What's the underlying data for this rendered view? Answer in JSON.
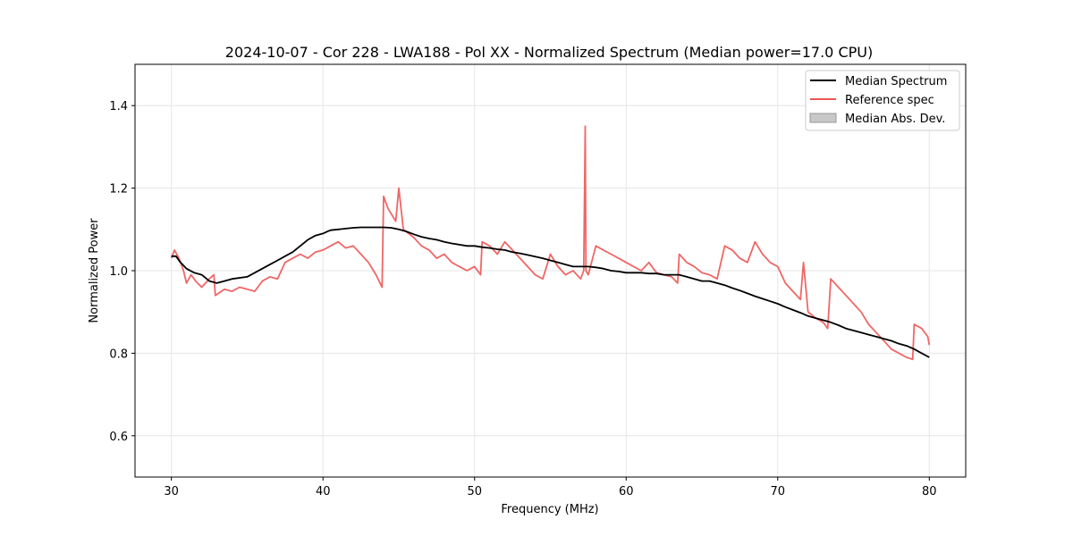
{
  "chart_data": {
    "type": "line",
    "title": "2024-10-07 - Cor 228 - LWA188 - Pol XX - Normalized Spectrum (Median power=17.0 CPU)",
    "xlabel": "Frequency (MHz)",
    "ylabel": "Normalized Power",
    "xlim": [
      27.6,
      82.4
    ],
    "ylim": [
      0.5,
      1.5
    ],
    "xticks": [
      30,
      40,
      50,
      60,
      70,
      80
    ],
    "yticks": [
      0.6,
      0.8,
      1.0,
      1.2,
      1.4
    ],
    "xtick_labels": [
      "30",
      "40",
      "50",
      "60",
      "70",
      "80"
    ],
    "ytick_labels": [
      "0.6",
      "0.8",
      "1.0",
      "1.2",
      "1.4"
    ],
    "grid": true,
    "legend_position": "top-right",
    "legend": [
      "Median Spectrum",
      "Reference spec",
      "Median Abs. Dev."
    ],
    "series": [
      {
        "name": "Median Spectrum",
        "color": "#000000",
        "x": [
          30.0,
          30.3,
          30.6,
          31.0,
          31.5,
          32.0,
          32.5,
          33.0,
          33.5,
          34.0,
          35.0,
          35.5,
          36.0,
          36.5,
          37.0,
          37.5,
          38.0,
          38.5,
          39.0,
          39.5,
          40.0,
          40.3,
          40.5,
          41.0,
          41.5,
          42.0,
          42.5,
          43.0,
          43.5,
          44.0,
          44.5,
          45.0,
          45.5,
          46.0,
          46.5,
          47.0,
          47.5,
          48.0,
          48.5,
          49.0,
          49.5,
          50.0,
          50.5,
          51.0,
          51.5,
          52.0,
          52.5,
          53.0,
          53.5,
          54.0,
          54.5,
          55.0,
          55.5,
          56.0,
          56.5,
          57.0,
          57.5,
          58.0,
          58.5,
          59.0,
          59.5,
          60.0,
          60.5,
          61.0,
          61.5,
          62.0,
          62.5,
          63.0,
          63.5,
          64.0,
          64.5,
          65.0,
          65.5,
          66.0,
          66.5,
          67.0,
          67.5,
          68.0,
          68.5,
          69.0,
          69.5,
          70.0,
          70.5,
          71.0,
          71.5,
          72.0,
          72.5,
          73.0,
          73.5,
          74.0,
          74.5,
          75.0,
          75.5,
          76.0,
          76.5,
          77.0,
          77.5,
          78.0,
          78.5,
          79.0,
          79.5,
          80.0
        ],
        "y": [
          1.035,
          1.035,
          1.02,
          1.005,
          0.995,
          0.99,
          0.975,
          0.97,
          0.975,
          0.98,
          0.985,
          0.995,
          1.005,
          1.015,
          1.025,
          1.035,
          1.045,
          1.06,
          1.075,
          1.085,
          1.09,
          1.095,
          1.098,
          1.1,
          1.102,
          1.104,
          1.105,
          1.105,
          1.105,
          1.105,
          1.104,
          1.1,
          1.095,
          1.088,
          1.082,
          1.078,
          1.075,
          1.07,
          1.066,
          1.063,
          1.06,
          1.06,
          1.057,
          1.055,
          1.052,
          1.05,
          1.045,
          1.042,
          1.038,
          1.034,
          1.03,
          1.025,
          1.02,
          1.015,
          1.01,
          1.01,
          1.01,
          1.008,
          1.005,
          1.0,
          0.998,
          0.995,
          0.995,
          0.995,
          0.993,
          0.993,
          0.99,
          0.99,
          0.99,
          0.985,
          0.98,
          0.975,
          0.975,
          0.97,
          0.965,
          0.958,
          0.952,
          0.945,
          0.938,
          0.932,
          0.926,
          0.92,
          0.912,
          0.905,
          0.898,
          0.89,
          0.885,
          0.88,
          0.875,
          0.868,
          0.86,
          0.855,
          0.85,
          0.845,
          0.84,
          0.835,
          0.83,
          0.823,
          0.818,
          0.81,
          0.8,
          0.79
        ]
      },
      {
        "name": "Reference spec",
        "color": "#ee5555",
        "x": [
          30.0,
          30.2,
          30.5,
          30.8,
          31.0,
          31.3,
          31.6,
          32.0,
          32.5,
          32.8,
          32.9,
          33.5,
          34.0,
          34.5,
          35.0,
          35.5,
          36.0,
          36.5,
          37.0,
          37.5,
          38.0,
          38.5,
          39.0,
          39.5,
          40.0,
          40.5,
          41.0,
          41.5,
          42.0,
          42.5,
          43.0,
          43.5,
          43.9,
          44.0,
          44.3,
          44.8,
          45.0,
          45.3,
          46.0,
          46.5,
          47.0,
          47.5,
          48.0,
          48.5,
          49.0,
          49.5,
          50.0,
          50.4,
          50.5,
          51.0,
          51.5,
          52.0,
          52.5,
          53.0,
          53.5,
          54.0,
          54.5,
          55.0,
          55.5,
          56.0,
          56.5,
          57.0,
          57.2,
          57.3,
          57.35,
          57.5,
          58.0,
          58.5,
          59.0,
          59.5,
          60.0,
          60.5,
          61.0,
          61.5,
          62.0,
          62.5,
          63.0,
          63.4,
          63.5,
          64.0,
          64.5,
          65.0,
          65.5,
          66.0,
          66.5,
          67.0,
          67.5,
          68.0,
          68.5,
          69.0,
          69.5,
          70.0,
          70.5,
          71.0,
          71.5,
          71.7,
          72.0,
          72.5,
          73.0,
          73.3,
          73.5,
          74.0,
          74.5,
          75.0,
          75.5,
          76.0,
          76.5,
          77.0,
          77.5,
          78.0,
          78.5,
          78.9,
          79.0,
          79.5,
          79.9,
          80.0
        ],
        "y": [
          1.03,
          1.05,
          1.03,
          1.0,
          0.97,
          0.99,
          0.975,
          0.96,
          0.98,
          0.99,
          0.94,
          0.955,
          0.95,
          0.96,
          0.955,
          0.95,
          0.975,
          0.985,
          0.98,
          1.02,
          1.03,
          1.04,
          1.03,
          1.045,
          1.05,
          1.06,
          1.07,
          1.055,
          1.06,
          1.04,
          1.02,
          0.99,
          0.96,
          1.18,
          1.15,
          1.12,
          1.2,
          1.1,
          1.08,
          1.06,
          1.05,
          1.03,
          1.04,
          1.02,
          1.01,
          1.0,
          1.01,
          0.99,
          1.07,
          1.06,
          1.04,
          1.07,
          1.05,
          1.03,
          1.01,
          0.99,
          0.98,
          1.04,
          1.01,
          0.99,
          1.0,
          0.98,
          1.0,
          1.35,
          1.0,
          0.99,
          1.06,
          1.05,
          1.04,
          1.03,
          1.02,
          1.01,
          1.0,
          1.02,
          0.995,
          0.99,
          0.985,
          0.97,
          1.04,
          1.02,
          1.01,
          0.995,
          0.99,
          0.98,
          1.06,
          1.05,
          1.03,
          1.02,
          1.07,
          1.04,
          1.02,
          1.01,
          0.97,
          0.95,
          0.93,
          1.02,
          0.9,
          0.885,
          0.875,
          0.86,
          0.98,
          0.96,
          0.94,
          0.92,
          0.9,
          0.87,
          0.85,
          0.83,
          0.81,
          0.8,
          0.79,
          0.785,
          0.87,
          0.86,
          0.84,
          0.82
        ]
      }
    ],
    "mad_band": {
      "name": "Median Abs. Dev.",
      "color": "#c8c8c8"
    }
  }
}
